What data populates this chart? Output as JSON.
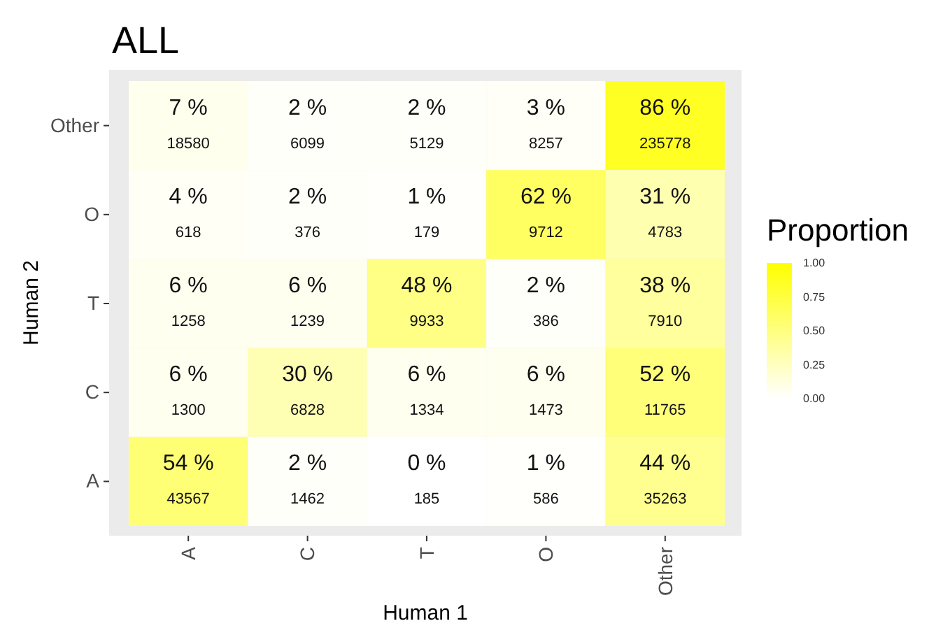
{
  "chart_data": {
    "type": "heatmap",
    "title": "ALL",
    "xlabel": "Human 1",
    "ylabel": "Human 2",
    "legend_title": "Proportion",
    "categories": [
      "A",
      "C",
      "T",
      "O",
      "Other"
    ],
    "y_categories": [
      "Other",
      "O",
      "T",
      "C",
      "A"
    ],
    "cells": [
      [
        0.07,
        0.02,
        0.02,
        0.03,
        0.86
      ],
      [
        0.04,
        0.02,
        0.01,
        0.62,
        0.31
      ],
      [
        0.06,
        0.06,
        0.48,
        0.02,
        0.38
      ],
      [
        0.06,
        0.3,
        0.06,
        0.06,
        0.52
      ],
      [
        0.54,
        0.02,
        0.0,
        0.01,
        0.44
      ]
    ],
    "cell_labels": [
      [
        "7 %\n18580",
        "2 %\n6099",
        "2 %\n5129",
        "3 %\n8257",
        "86 %\n235778"
      ],
      [
        "4 %\n618",
        "2 %\n376",
        "1 %\n179",
        "62 %\n9712",
        "31 %\n4783"
      ],
      [
        "6 %\n1258",
        "6 %\n1239",
        "48 %\n9933",
        "2 %\n386",
        "38 %\n7910"
      ],
      [
        "6 %\n1300",
        "30 %\n6828",
        "6 %\n1334",
        "6 %\n1473",
        "52 %\n11765"
      ],
      [
        "54 %\n43567",
        "2 %\n1462",
        "0 %\n185",
        "1 %\n586",
        "44 %\n35263"
      ]
    ],
    "clim": [
      0,
      1
    ],
    "cticks": [
      {
        "value": 0,
        "label": "0.00"
      },
      {
        "value": 0.25,
        "label": "0.25"
      },
      {
        "value": 0.5,
        "label": "0.50"
      },
      {
        "value": 0.75,
        "label": "0.75"
      },
      {
        "value": 1,
        "label": "1.00"
      }
    ]
  }
}
